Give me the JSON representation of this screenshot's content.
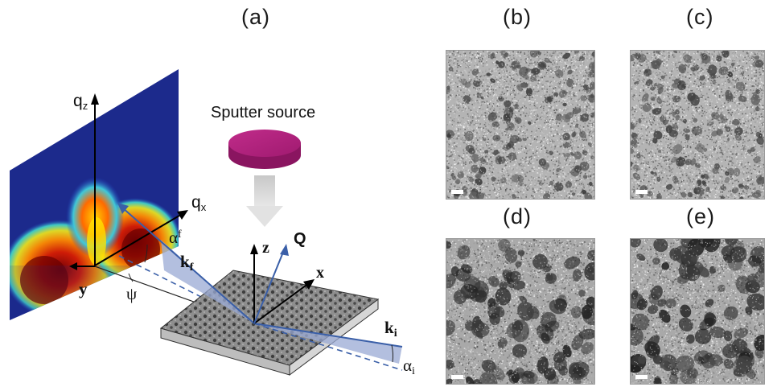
{
  "figure": {
    "panel_labels": {
      "a": "(a)",
      "b": "(b)",
      "c": "(c)",
      "d": "(d)",
      "e": "(e)"
    },
    "schematic": {
      "source_label": "Sputter source",
      "axis_qz": "q",
      "axis_qz_sub": "z",
      "axis_qx": "q",
      "axis_qx_sub": "x",
      "axis_y": "y",
      "axis_z": "z",
      "axis_x": "x",
      "vector_Q": "Q",
      "vector_kf": "k",
      "vector_kf_sub": "f",
      "vector_ki": "k",
      "vector_ki_sub": "i",
      "angle_alpha_f": "α",
      "angle_alpha_f_sub": "f",
      "angle_alpha_i": "α",
      "angle_alpha_i_sub": "i",
      "angle_psi": "ψ"
    },
    "micrographs": [
      {
        "id": "b",
        "density": "fine"
      },
      {
        "id": "c",
        "density": "fine"
      },
      {
        "id": "d",
        "density": "coarse"
      },
      {
        "id": "e",
        "density": "coarse"
      }
    ],
    "colors": {
      "beam": "#3a5fa8",
      "beam_fill": "#9aa9d4",
      "source_disk": "#b0237a",
      "detector_bg": "#1c2a8c"
    }
  }
}
